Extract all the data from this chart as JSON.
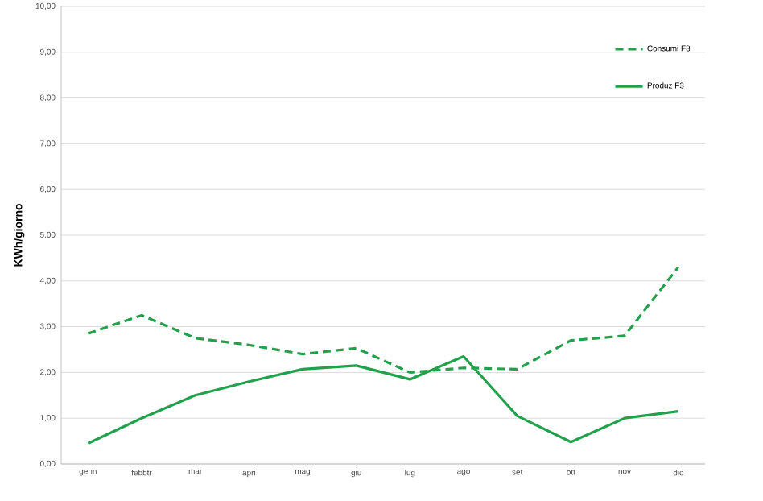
{
  "chart_data": {
    "type": "line",
    "ylabel": "KWh/giorno",
    "categories": [
      "genn",
      "febbtr",
      "mar",
      "apri",
      "mag",
      "giu",
      "lug",
      "ago",
      "set",
      "ott",
      "nov",
      "dic"
    ],
    "series": [
      {
        "name": "Consumi F3",
        "color": "#23a04c",
        "line_style": "dashed",
        "values": [
          2.85,
          3.25,
          2.75,
          2.6,
          2.4,
          2.53,
          2.0,
          2.1,
          2.07,
          2.7,
          2.8,
          4.3
        ]
      },
      {
        "name": "Produz F3",
        "color": "#23a04c",
        "line_style": "solid",
        "values": [
          0.45,
          1.0,
          1.5,
          1.8,
          2.07,
          2.15,
          1.85,
          2.35,
          1.05,
          0.48,
          1.0,
          1.15
        ]
      }
    ],
    "ylim": [
      0,
      10
    ],
    "yticks": [
      {
        "value": 0,
        "label": "0,00"
      },
      {
        "value": 1,
        "label": "1,00"
      },
      {
        "value": 2,
        "label": "2,00"
      },
      {
        "value": 3,
        "label": "3,00"
      },
      {
        "value": 4,
        "label": "4,00"
      },
      {
        "value": 5,
        "label": "5,00"
      },
      {
        "value": 6,
        "label": "6,00"
      },
      {
        "value": 7,
        "label": "7,00"
      },
      {
        "value": 8,
        "label": "8,00"
      },
      {
        "value": 9,
        "label": "9,00"
      },
      {
        "value": 10,
        "label": "10,00"
      }
    ],
    "grid": "y",
    "legend": "top right",
    "marker": "none"
  }
}
